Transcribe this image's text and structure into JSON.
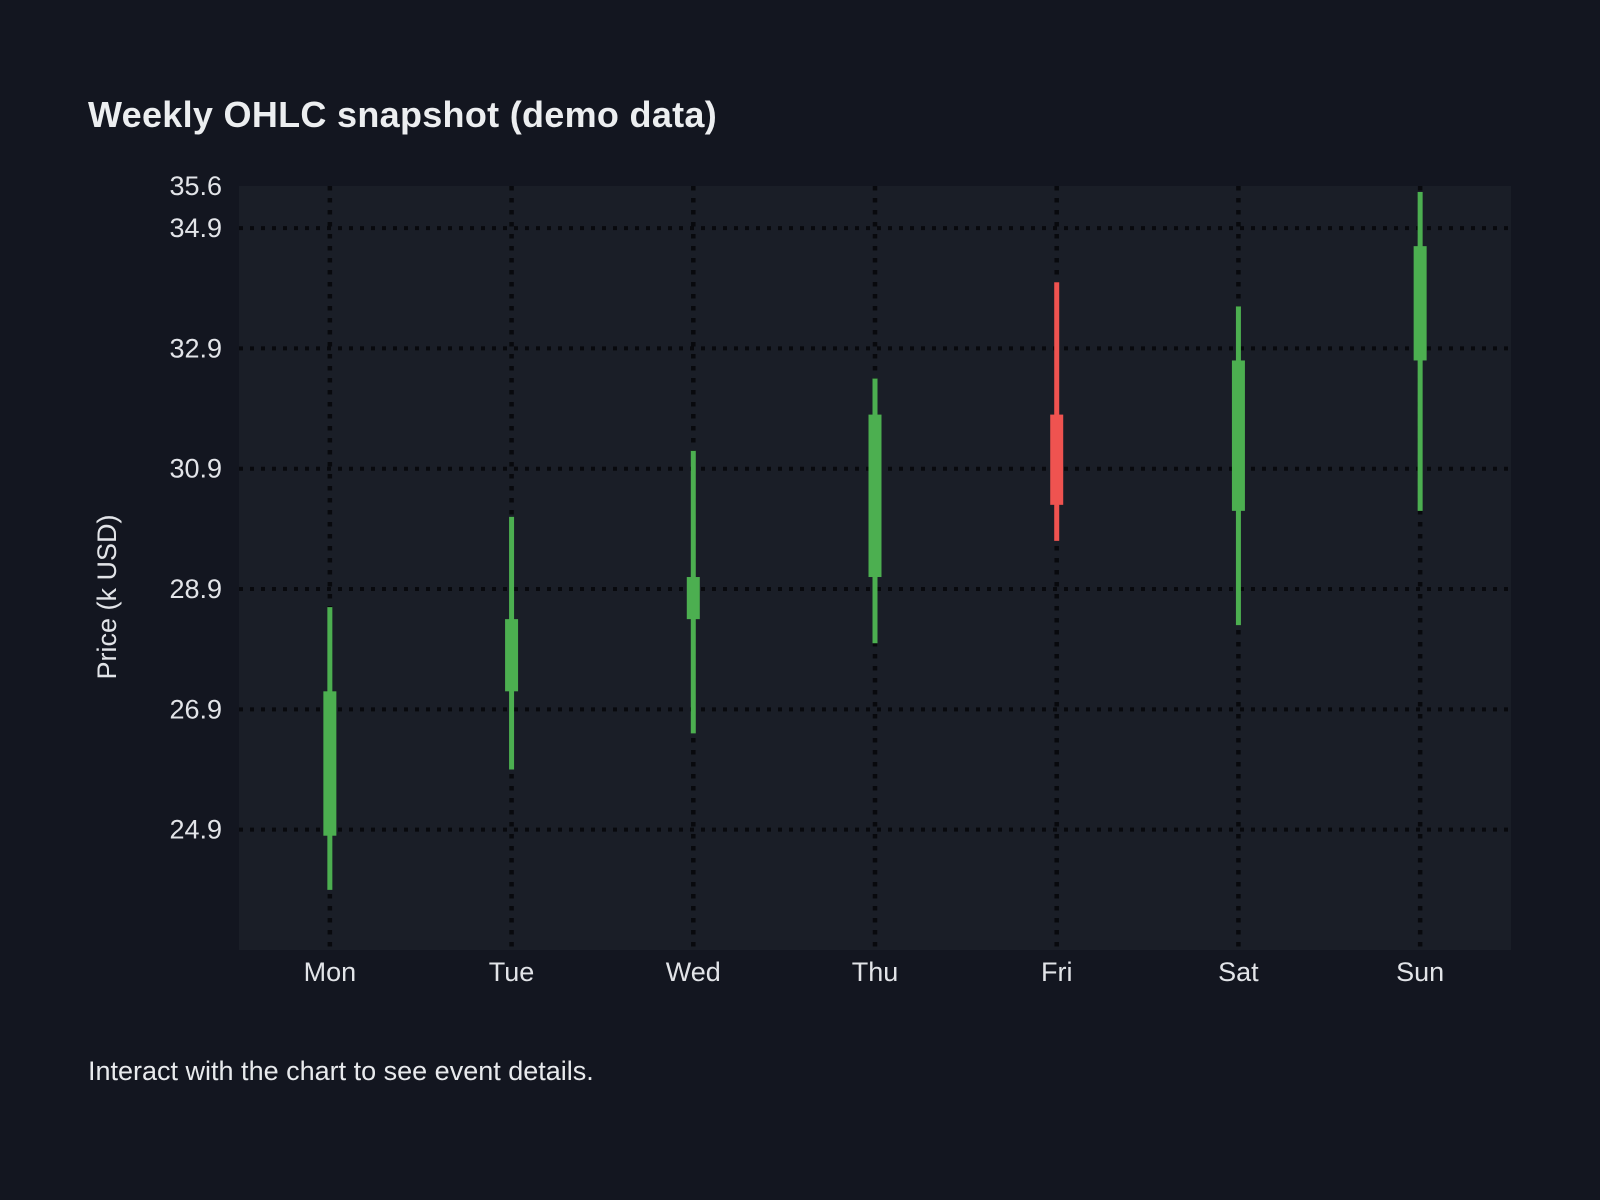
{
  "page": {
    "title": "Weekly OHLC snapshot (demo data)",
    "footer_hint": "Interact with the chart to see event details."
  },
  "colors": {
    "background": "#131620",
    "plot_background": "#1a1e27",
    "grid": "#08090d",
    "title_text": "#eceef0",
    "tick_text": "#e2e4e8",
    "up": "#4caf50",
    "down": "#ef5350"
  },
  "chart_data": {
    "type": "candlestick",
    "title": "Weekly OHLC snapshot (demo data)",
    "xlabel": "",
    "ylabel": "Price (k USD)",
    "categories": [
      "Mon",
      "Tue",
      "Wed",
      "Thu",
      "Fri",
      "Sat",
      "Sun"
    ],
    "ohlc": [
      {
        "day": "Mon",
        "open": 24.8,
        "high": 28.6,
        "low": 23.9,
        "close": 27.2,
        "direction": "up"
      },
      {
        "day": "Tue",
        "open": 27.2,
        "high": 30.1,
        "low": 25.9,
        "close": 28.4,
        "direction": "up"
      },
      {
        "day": "Wed",
        "open": 28.4,
        "high": 31.2,
        "low": 26.5,
        "close": 29.1,
        "direction": "up"
      },
      {
        "day": "Thu",
        "open": 29.1,
        "high": 32.4,
        "low": 28.0,
        "close": 31.8,
        "direction": "up"
      },
      {
        "day": "Fri",
        "open": 31.8,
        "high": 34.0,
        "low": 29.7,
        "close": 30.3,
        "direction": "down"
      },
      {
        "day": "Sat",
        "open": 30.2,
        "high": 33.6,
        "low": 28.3,
        "close": 32.7,
        "direction": "up"
      },
      {
        "day": "Sun",
        "open": 32.7,
        "high": 35.5,
        "low": 30.2,
        "close": 34.6,
        "direction": "up"
      }
    ],
    "y_ticks": [
      35.6,
      34.9,
      32.9,
      30.9,
      28.9,
      26.9,
      24.9
    ],
    "y_gridlines": [
      34.9,
      32.9,
      30.9,
      28.9,
      26.9,
      24.9
    ],
    "ylim": [
      22.9,
      35.6
    ],
    "grid": "dotted-both-axes",
    "legend": "none",
    "up_color": "#4caf50",
    "down_color": "#ef5350"
  }
}
